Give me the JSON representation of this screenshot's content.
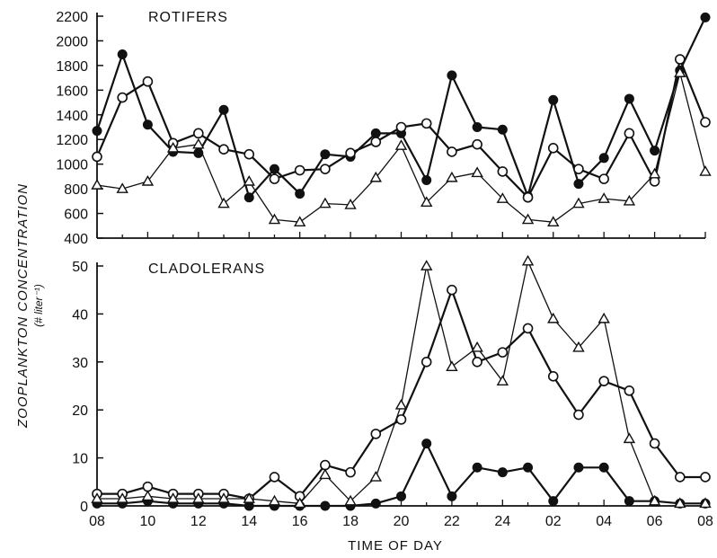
{
  "figure": {
    "xlabel": "TIME OF DAY",
    "ylabel": "ZOOPLANKTON CONCENTRATION",
    "yunit": "(# liter⁻¹)"
  },
  "colors": {
    "ink": "#111111",
    "paper": "#ffffff"
  },
  "chart_data": [
    {
      "type": "line",
      "title": "ROTIFERS",
      "xlabel": "TIME OF DAY",
      "ylabel": "ZOOPLANKTON CONCENTRATION (# liter⁻¹)",
      "x": [
        8,
        9,
        10,
        11,
        12,
        13,
        14,
        15,
        16,
        17,
        18,
        19,
        20,
        21,
        22,
        23,
        24,
        25,
        26,
        27,
        28,
        29,
        30,
        31,
        32
      ],
      "xticks": [
        "08",
        "10",
        "12",
        "14",
        "16",
        "18",
        "20",
        "22",
        "24",
        "02",
        "04",
        "06",
        "08"
      ],
      "ylim": [
        400,
        2200
      ],
      "yticks": [
        400,
        600,
        800,
        1000,
        1200,
        1400,
        1600,
        1800,
        2000,
        2200
      ],
      "series": [
        {
          "marker": "filled-circle",
          "values": [
            1270,
            1890,
            1320,
            1100,
            1090,
            1440,
            730,
            960,
            760,
            1080,
            1060,
            1250,
            1250,
            870,
            1720,
            1300,
            1280,
            740,
            1520,
            840,
            1050,
            1530,
            1110,
            1760,
            2190
          ]
        },
        {
          "marker": "open-circle",
          "values": [
            1060,
            1540,
            1670,
            1170,
            1250,
            1120,
            1080,
            880,
            950,
            960,
            1090,
            1180,
            1300,
            1330,
            1100,
            1160,
            940,
            730,
            1130,
            960,
            880,
            1250,
            860,
            1850,
            1340
          ]
        },
        {
          "marker": "open-triangle",
          "values": [
            830,
            800,
            860,
            1130,
            1160,
            680,
            860,
            550,
            530,
            680,
            670,
            890,
            1150,
            690,
            890,
            930,
            720,
            550,
            530,
            680,
            720,
            700,
            920,
            1740,
            940
          ]
        }
      ]
    },
    {
      "type": "line",
      "title": "CLADOLERANS",
      "xlabel": "TIME OF DAY",
      "ylabel": "ZOOPLANKTON CONCENTRATION (# liter⁻¹)",
      "x": [
        8,
        9,
        10,
        11,
        12,
        13,
        14,
        15,
        16,
        17,
        18,
        19,
        20,
        21,
        22,
        23,
        24,
        25,
        26,
        27,
        28,
        29,
        30,
        31,
        32
      ],
      "xticks": [
        "08",
        "10",
        "12",
        "14",
        "16",
        "18",
        "20",
        "22",
        "24",
        "02",
        "04",
        "06",
        "08"
      ],
      "ylim": [
        0,
        50
      ],
      "yticks": [
        0,
        10,
        20,
        30,
        40,
        50
      ],
      "series": [
        {
          "marker": "filled-circle",
          "values": [
            0.5,
            0.5,
            1,
            0.5,
            0.5,
            0.5,
            0,
            0,
            0,
            0,
            0,
            0.5,
            2,
            13,
            2,
            8,
            7,
            8,
            1,
            8,
            8,
            1,
            1,
            0.5,
            0.5
          ]
        },
        {
          "marker": "open-circle",
          "values": [
            2.5,
            2.5,
            4,
            2.5,
            2.5,
            2.5,
            1.5,
            6,
            2,
            8.5,
            7,
            15,
            18,
            30,
            45,
            30,
            32,
            37,
            27,
            19,
            26,
            24,
            13,
            6,
            6
          ]
        },
        {
          "marker": "open-triangle",
          "values": [
            1.5,
            1.5,
            2,
            1.5,
            1.5,
            1.5,
            1.5,
            1,
            0.5,
            6.5,
            1,
            6,
            21,
            50,
            29,
            33,
            26,
            51,
            39,
            33,
            39,
            14,
            1,
            0.5,
            0.5
          ]
        }
      ]
    }
  ]
}
